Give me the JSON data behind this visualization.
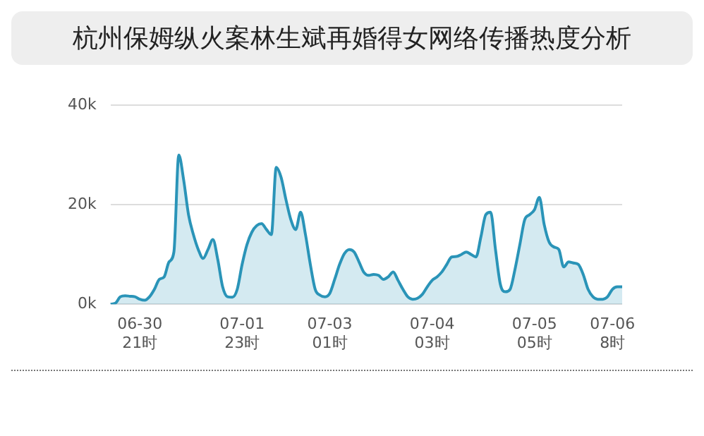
{
  "chart_data": {
    "type": "area",
    "title": "杭州保姆纵火案林生斌再婚得女网络传播热度分析",
    "categories": [
      null,
      null,
      null,
      null,
      null,
      null,
      "06-30\n21时",
      null,
      null,
      null,
      null,
      null,
      null,
      null,
      null,
      null,
      null,
      null,
      null,
      null,
      null,
      null,
      null,
      null,
      null,
      null,
      null,
      "07-01\n23时",
      null,
      null,
      null,
      null,
      null,
      null,
      null,
      null,
      null,
      null,
      null,
      null,
      null,
      null,
      null,
      null,
      null,
      "07-03\n01时",
      null,
      null,
      null,
      null,
      null,
      null,
      null,
      null,
      null,
      null,
      null,
      null,
      null,
      null,
      null,
      null,
      null,
      null,
      null,
      null,
      "07-04\n03时",
      null,
      null,
      null,
      null,
      null,
      null,
      null,
      null,
      null,
      null,
      null,
      null,
      null,
      null,
      null,
      null,
      null,
      null,
      null,
      null,
      "07-05\n05时",
      null,
      null,
      null,
      null,
      null,
      null,
      null,
      null,
      null,
      null,
      null,
      null,
      null,
      null,
      null,
      "07-06\n8时",
      null,
      null
    ],
    "series": [
      {
        "color": "#2a94b8",
        "values": [
          0,
          0.2,
          1.5,
          1.7,
          1.6,
          1.5,
          1,
          0.8,
          1.5,
          3,
          5,
          5.5,
          8.5,
          10.5,
          30,
          25,
          18,
          14,
          11,
          9.2,
          11,
          13,
          9,
          3.5,
          1.5,
          1.4,
          3,
          8,
          12,
          14.5,
          15.8,
          16.2,
          15,
          14,
          27.5,
          25.5,
          21,
          17,
          15,
          18.5,
          14,
          8,
          3,
          1.8,
          1.5,
          2.2,
          5,
          8,
          10.2,
          11,
          10.5,
          8.5,
          6.4,
          5.8,
          6,
          5.8,
          5,
          5.5,
          6.5,
          4.8,
          3,
          1.5,
          1,
          1.2,
          2,
          3.5,
          4.8,
          5.5,
          6.5,
          8,
          9.5,
          9.6,
          10,
          10.5,
          10,
          9.5,
          13.5,
          18,
          18.5,
          11,
          4,
          2.5,
          3,
          7,
          12,
          17,
          18,
          19,
          21.5,
          16,
          12.5,
          11.5,
          11,
          7.5,
          8.5,
          8.3,
          8,
          6,
          3,
          1.5,
          1,
          1,
          1.5,
          3,
          3.5,
          3.5
        ]
      }
    ],
    "ylim": [
      0,
      40
    ],
    "yticks": [
      {
        "value": 0,
        "label": "0k"
      },
      {
        "value": 20,
        "label": "20k"
      },
      {
        "value": 40,
        "label": "40k"
      }
    ],
    "grid": "y",
    "legend": false,
    "marker": "none"
  }
}
